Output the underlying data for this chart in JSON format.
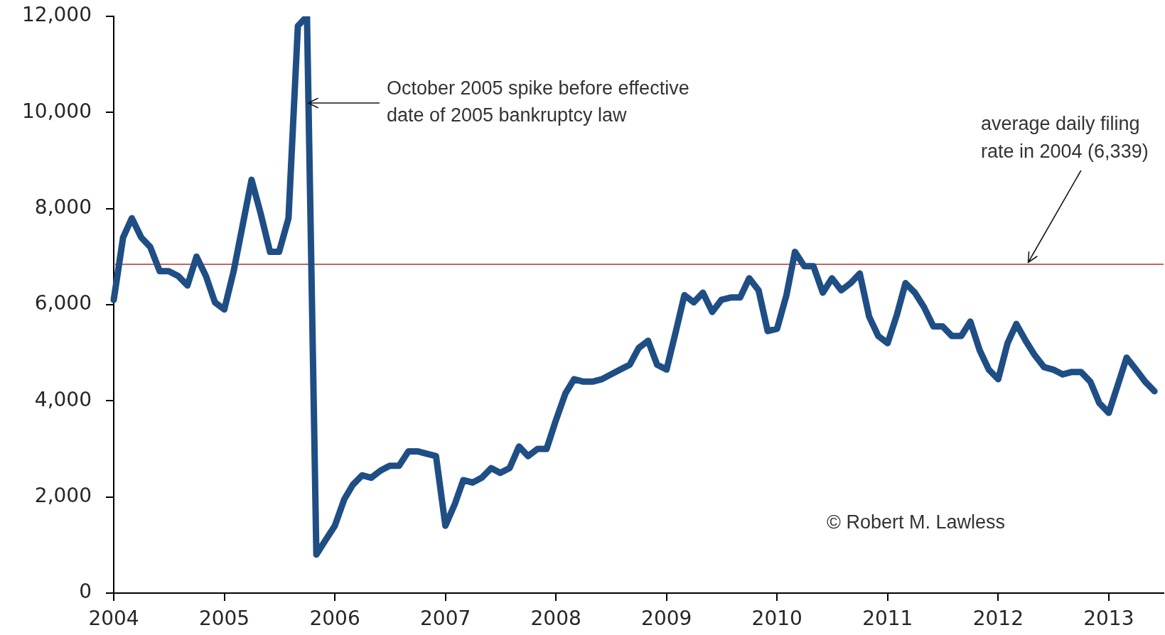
{
  "chart_data": {
    "type": "line",
    "x": [
      "2004-01",
      "2004-02",
      "2004-03",
      "2004-04",
      "2004-05",
      "2004-06",
      "2004-07",
      "2004-08",
      "2004-09",
      "2004-10",
      "2004-11",
      "2004-12",
      "2005-01",
      "2005-02",
      "2005-03",
      "2005-04",
      "2005-05",
      "2005-06",
      "2005-07",
      "2005-08",
      "2005-09",
      "2005-10",
      "2005-11",
      "2005-12",
      "2006-01",
      "2006-02",
      "2006-03",
      "2006-04",
      "2006-05",
      "2006-06",
      "2006-07",
      "2006-08",
      "2006-09",
      "2006-10",
      "2006-11",
      "2006-12",
      "2007-01",
      "2007-02",
      "2007-03",
      "2007-04",
      "2007-05",
      "2007-06",
      "2007-07",
      "2007-08",
      "2007-09",
      "2007-10",
      "2007-11",
      "2007-12",
      "2008-01",
      "2008-02",
      "2008-03",
      "2008-04",
      "2008-05",
      "2008-06",
      "2008-07",
      "2008-08",
      "2008-09",
      "2008-10",
      "2008-11",
      "2008-12",
      "2009-01",
      "2009-02",
      "2009-03",
      "2009-04",
      "2009-05",
      "2009-06",
      "2009-07",
      "2009-08",
      "2009-09",
      "2009-10",
      "2009-11",
      "2009-12",
      "2010-01",
      "2010-02",
      "2010-03",
      "2010-04",
      "2010-05",
      "2010-06",
      "2010-07",
      "2010-08",
      "2010-09",
      "2010-10",
      "2010-11",
      "2010-12",
      "2011-01",
      "2011-02",
      "2011-03",
      "2011-04",
      "2011-05",
      "2011-06",
      "2011-07",
      "2011-08",
      "2011-09",
      "2011-10",
      "2011-11",
      "2011-12",
      "2012-01",
      "2012-02",
      "2012-03",
      "2012-04",
      "2012-05",
      "2012-06",
      "2012-07",
      "2012-08",
      "2012-09",
      "2012-10",
      "2012-11",
      "2012-12",
      "2013-01",
      "2013-02",
      "2013-03",
      "2013-04",
      "2013-05",
      "2013-06"
    ],
    "values": [
      6100,
      7400,
      7800,
      7400,
      7200,
      6700,
      6700,
      6600,
      6400,
      7000,
      6600,
      6050,
      5900,
      6700,
      7600,
      8600,
      7900,
      7100,
      7100,
      7800,
      11800,
      12000,
      800,
      1100,
      1400,
      1950,
      2250,
      2450,
      2400,
      2550,
      2650,
      2650,
      2950,
      2950,
      2900,
      2850,
      1400,
      1850,
      2350,
      2300,
      2400,
      2600,
      2500,
      2600,
      3050,
      2850,
      3000,
      3000,
      3600,
      4150,
      4450,
      4400,
      4400,
      4450,
      4550,
      4650,
      4750,
      5100,
      5250,
      4750,
      4650,
      5450,
      6200,
      6050,
      6250,
      5850,
      6100,
      6150,
      6150,
      6550,
      6300,
      5450,
      5500,
      6200,
      7100,
      6800,
      6800,
      6250,
      6550,
      6300,
      6450,
      6650,
      5750,
      5350,
      5200,
      5800,
      6450,
      6250,
      5950,
      5550,
      5550,
      5350,
      5350,
      5650,
      5050,
      4650,
      4450,
      5200,
      5600,
      5250,
      4950,
      4700,
      4650,
      4550,
      4600,
      4600,
      4400,
      3950,
      3750,
      4350,
      4900,
      4650,
      4400,
      4200
    ],
    "color": "#1f4e85",
    "line_style": "solid",
    "xlim": [
      "2004-01",
      "2013-07"
    ],
    "xticks": [
      "2004",
      "2005",
      "2006",
      "2007",
      "2008",
      "2009",
      "2010",
      "2011",
      "2012",
      "2013"
    ],
    "ylim": [
      0,
      12000
    ],
    "yticks": [
      0,
      {
        "value": 2000,
        "label": "2,000"
      },
      {
        "value": 4000,
        "label": "4,000"
      },
      {
        "value": 6000,
        "label": "6,000"
      },
      {
        "value": 8000,
        "label": "8,000"
      },
      {
        "value": 10000,
        "label": "10,000"
      },
      {
        "value": 12000,
        "label": "12,000"
      }
    ],
    "ref_lines": [
      {
        "axis": "y",
        "value": 6840,
        "color": "#c0504d"
      }
    ],
    "annotations": [
      {
        "text": "October 2005 spike before effective date of 2005 bankruptcy law",
        "x": "2005-10",
        "y": 10200
      },
      {
        "text": "average daily filing rate in 2004 (6,339)",
        "x": "2012-04",
        "y": 6840
      },
      "© Robert M. Lawless"
    ]
  }
}
